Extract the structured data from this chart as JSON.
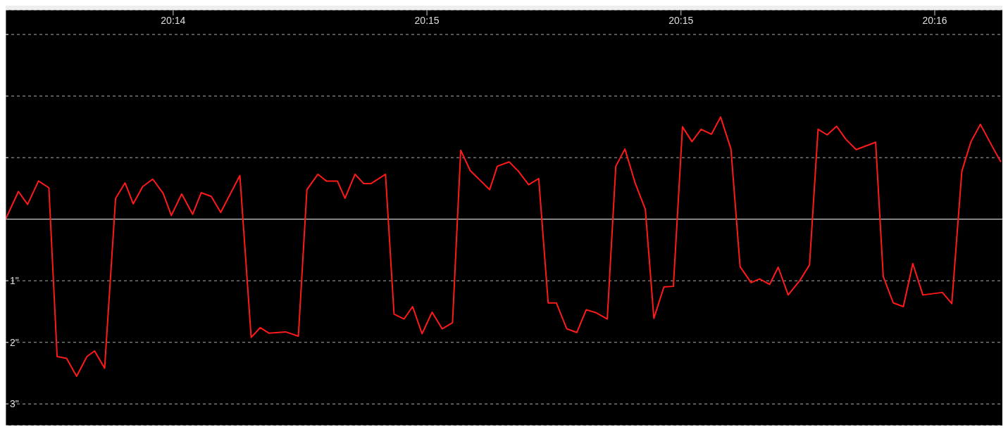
{
  "chart_data": {
    "type": "line",
    "x": [
      20.232,
      20.23242,
      20.23272,
      20.23308,
      20.23342,
      20.23369,
      20.234,
      20.23433,
      20.23467,
      20.23492,
      20.23525,
      20.23561,
      20.23592,
      20.23619,
      20.2365,
      20.23683,
      20.23717,
      20.23744,
      20.23778,
      20.23814,
      20.23842,
      20.23875,
      20.23906,
      20.23969,
      20.24006,
      20.24036,
      20.24064,
      20.24119,
      20.24161,
      20.24189,
      20.24225,
      20.24253,
      20.24289,
      20.24314,
      20.24347,
      20.24375,
      20.244,
      20.24447,
      20.24475,
      20.24508,
      20.24536,
      20.24567,
      20.246,
      20.24633,
      20.24667,
      20.24694,
      20.24725,
      20.24756,
      20.24789,
      20.24814,
      20.24853,
      20.24883,
      20.24917,
      20.2495,
      20.24981,
      20.25008,
      20.25042,
      20.25075,
      20.25106,
      20.25139,
      20.25175,
      20.25203,
      20.25233,
      20.25267,
      20.253,
      20.25328,
      20.25361,
      20.25392,
      20.25422,
      20.25453,
      20.25483,
      20.25517,
      20.25547,
      20.25581,
      20.25611,
      20.25647,
      20.25675,
      20.25708,
      20.25736,
      20.25769,
      20.25808,
      20.25839,
      20.25867,
      20.25897,
      20.25928,
      20.25958,
      20.25992,
      20.26056,
      20.26081,
      20.26114,
      20.26147,
      20.26178,
      20.26211,
      20.26275,
      20.26306,
      20.26339,
      20.26369,
      20.264,
      20.26439,
      20.26467
    ],
    "series": [
      {
        "color": "#ff1a1a",
        "values": [
          0,
          -0.45,
          -0.24,
          -0.62,
          -0.51,
          2.23,
          2.26,
          2.55,
          2.23,
          2.14,
          2.42,
          -0.34,
          -0.59,
          -0.25,
          -0.53,
          -0.65,
          -0.42,
          -0.06,
          -0.41,
          -0.08,
          -0.43,
          -0.37,
          -0.11,
          -0.71,
          1.92,
          1.76,
          1.85,
          1.83,
          1.9,
          -0.48,
          -0.73,
          -0.62,
          -0.62,
          -0.34,
          -0.73,
          -0.58,
          -0.58,
          -0.73,
          1.54,
          1.62,
          1.42,
          1.86,
          1.51,
          1.78,
          1.68,
          -1.12,
          -0.79,
          -0.64,
          -0.48,
          -0.86,
          -0.93,
          -0.78,
          -0.56,
          -0.66,
          1.36,
          1.36,
          1.78,
          1.84,
          1.47,
          1.52,
          1.62,
          -0.86,
          -1.14,
          -0.58,
          -0.16,
          1.61,
          1.1,
          1.09,
          -1.5,
          -1.26,
          -1.46,
          -1.38,
          -1.66,
          -1.14,
          0.77,
          1.03,
          0.97,
          1.06,
          0.78,
          1.23,
          0.99,
          0.74,
          -1.46,
          -1.37,
          -1.51,
          -1.3,
          -1.13,
          -1.25,
          0.93,
          1.36,
          1.42,
          0.72,
          1.23,
          1.19,
          1.37,
          -0.78,
          -1.26,
          -1.54,
          -1.18,
          -0.93
        ]
      }
    ],
    "xlim": [
      20.232,
      20.26472
    ],
    "xticks": [
      {
        "value": 20.2375,
        "label": "20:14"
      },
      {
        "value": 20.24583,
        "label": "20:15"
      },
      {
        "value": 20.25417,
        "label": "20:15"
      },
      {
        "value": 20.2625,
        "label": "20:16"
      }
    ],
    "ylim": [
      3.35,
      -3.4
    ],
    "yticks": [
      {
        "value": -3,
        "label": null
      },
      {
        "value": -2,
        "label": null
      },
      {
        "value": -1,
        "label": null
      },
      {
        "value": 1,
        "label": "1\""
      },
      {
        "value": 2,
        "label": "2\""
      },
      {
        "value": 3,
        "label": "3\""
      }
    ],
    "grid": "y",
    "line_style": "solid",
    "ref_lines": [
      {
        "axis": "y",
        "value": 0,
        "color": "#ffffff",
        "line_style": "solid"
      }
    ]
  }
}
